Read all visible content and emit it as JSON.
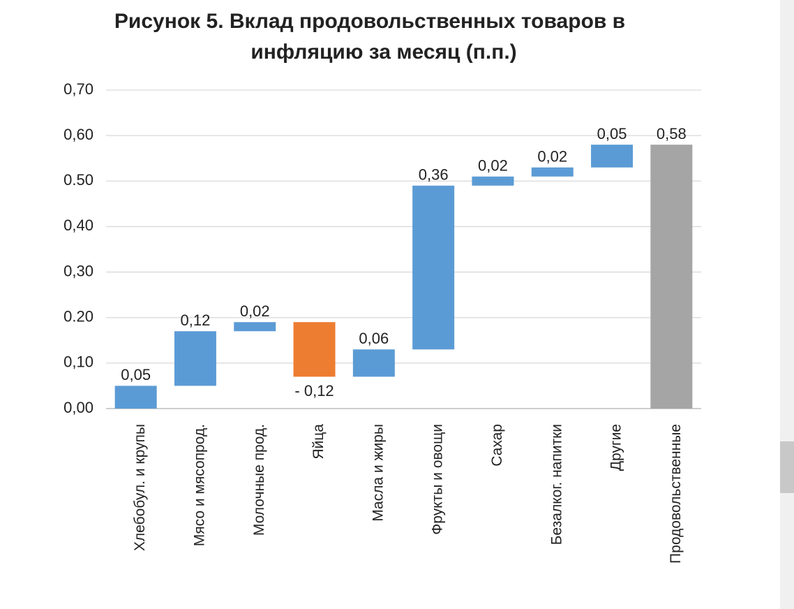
{
  "chart_data": {
    "type": "waterfall",
    "title": [
      "Рисунок 5. Вклад продовольственных товаров в",
      "инфляцию за месяц (п.п.)"
    ],
    "categories": [
      "Хлебобул. и крупы",
      "Мясо и мясопрод.",
      "Молочные прод.",
      "Яйца",
      "Масла и жиры",
      "Фрукты и овощи",
      "Сахар",
      "Безалког. напитки",
      "Другие",
      "Продовольственные"
    ],
    "values": [
      0.05,
      0.12,
      0.02,
      -0.12,
      0.06,
      0.36,
      0.02,
      0.02,
      0.05,
      0.58
    ],
    "value_labels": [
      "0,05",
      "0,12",
      "0,02",
      "- 0,12",
      "0,06",
      "0,36",
      "0,02",
      "0,02",
      "0,05",
      "0,58"
    ],
    "measure": [
      "relative",
      "relative",
      "relative",
      "relative",
      "relative",
      "relative",
      "relative",
      "relative",
      "relative",
      "total"
    ],
    "colors": [
      "#5b9bd5",
      "#5b9bd5",
      "#5b9bd5",
      "#ed7d31",
      "#5b9bd5",
      "#5b9bd5",
      "#5b9bd5",
      "#5b9bd5",
      "#5b9bd5",
      "#a5a5a5"
    ],
    "ylim": [
      0,
      0.7
    ],
    "yticks": [
      {
        "value": 0,
        "label": "0,00"
      },
      {
        "value": 0.1,
        "label": "0,10"
      },
      {
        "value": 0.2,
        "label": "0.20"
      },
      {
        "value": 0.3,
        "label": "0,30"
      },
      {
        "value": 0.4,
        "label": "0,40"
      },
      {
        "value": 0.5,
        "label": "0.50"
      },
      {
        "value": 0.6,
        "label": "0,60"
      },
      {
        "value": 0.7,
        "label": "0,70"
      }
    ],
    "grid": true
  }
}
